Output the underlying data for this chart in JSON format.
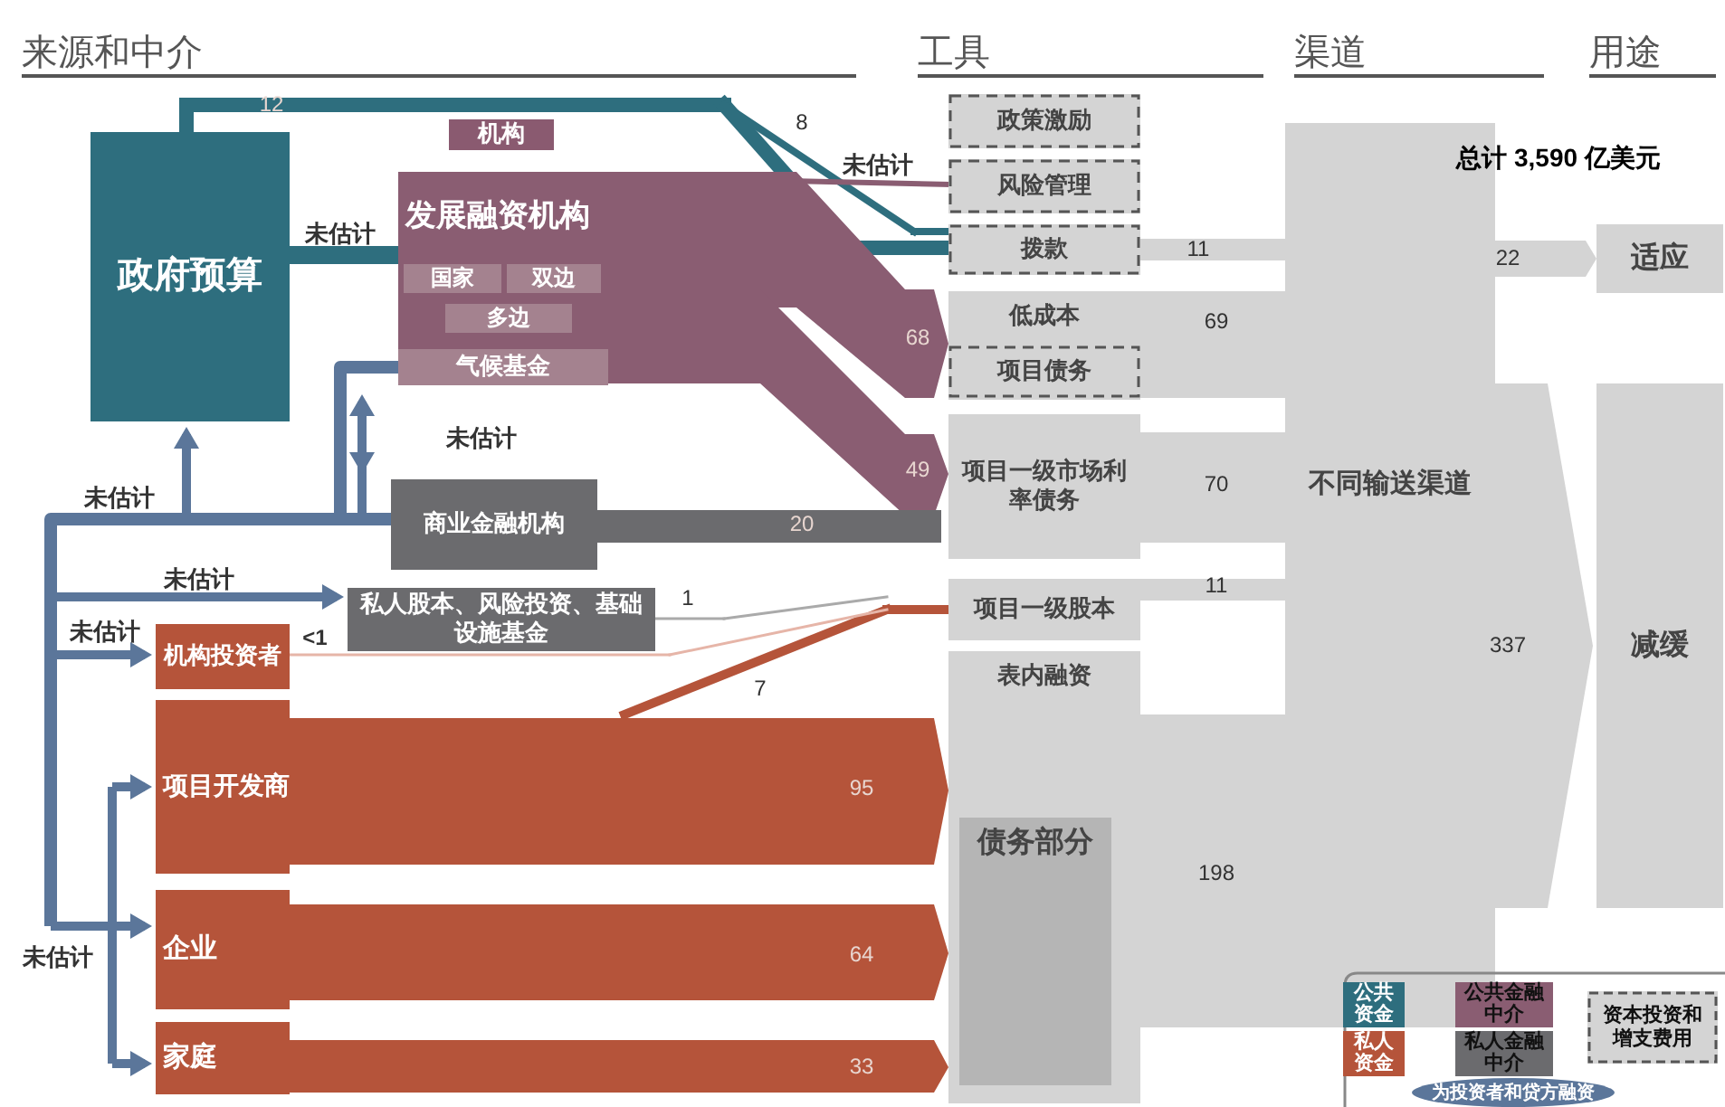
{
  "chart_data": {
    "type": "other",
    "categories": [
      "政府预算",
      "机构",
      "发展融资机构",
      "国家",
      "双边",
      "多边",
      "气候基金",
      "商业金融机构",
      "私人股本、风险投资、基础设施基金",
      "机构投资者",
      "项目开发商",
      "企业",
      "家庭",
      "政策激励",
      "风险管理",
      "拨款",
      "低成本",
      "项目债务",
      "项目一级市场利率债务",
      "项目一级股本",
      "表内融资",
      "债务部分",
      "不同输送渠道",
      "适应",
      "减缓"
    ],
    "values": [
      null,
      null,
      null,
      null,
      null,
      null,
      null,
      20,
      1,
      null,
      95,
      64,
      33,
      null,
      null,
      11,
      69,
      null,
      70,
      11,
      null,
      null,
      null,
      22,
      337
    ],
    "colors": [
      "#2e6e7e",
      "#8a5a70",
      "#8a5d72",
      "#a4828f",
      "#a4828f",
      "#a4828f",
      "#a4828f",
      "#6b6b6e",
      "#6b6b6e",
      "#b5543a",
      "#b5543a",
      "#b5543a",
      "#b5543a",
      "#d4d4d4",
      "#d4d4d4",
      "#d4d4d4",
      "#d4d4d4",
      "#d4d4d4",
      "#d4d4d4",
      "#d4d4d4",
      "#d4d4d4",
      "#b5b5b5",
      "#d4d4d4",
      "#d4d4d4",
      "#d4d4d4"
    ],
    "data_labels": true,
    "annotations": [
      "来源和中介",
      "工具",
      "渠道",
      "用途",
      "总计 3,590 亿美元",
      "未估计",
      "未估计",
      "未估计",
      "未估计",
      "未估计",
      "未估计",
      "未估计",
      "<1",
      "公共资金",
      "公共金融中介",
      "私人资金",
      "私人金融中介",
      "资本投资和增支费用",
      "为投资者和贷方融资",
      "12",
      "8",
      "68",
      "49",
      "7",
      "198"
    ]
  }
}
